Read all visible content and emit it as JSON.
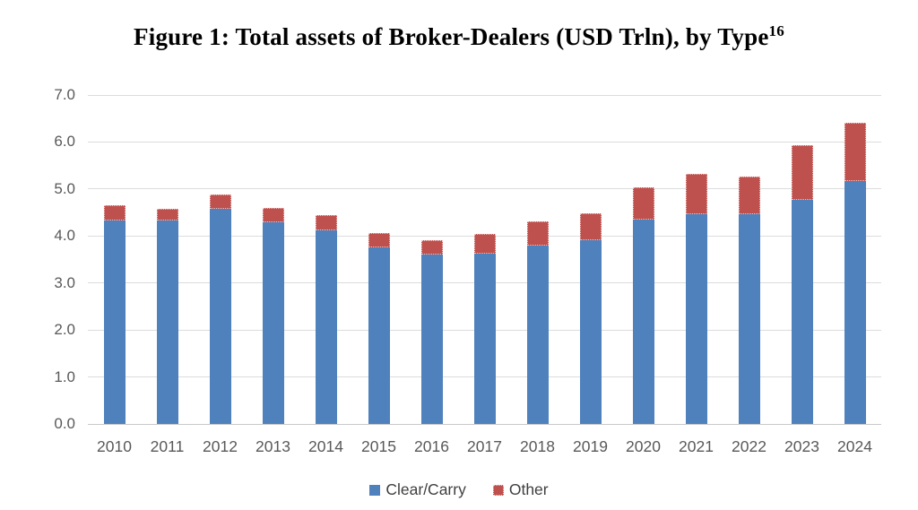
{
  "title": {
    "text": "Figure 1: Total assets of Broker-Dealers (USD Trln), by Type",
    "superscript": "16"
  },
  "chart_data": {
    "type": "bar",
    "stacked": true,
    "title": "Figure 1: Total assets of Broker-Dealers (USD Trln), by Type",
    "title_superscript": "16",
    "categories": [
      "2010",
      "2011",
      "2012",
      "2013",
      "2014",
      "2015",
      "2016",
      "2017",
      "2018",
      "2019",
      "2020",
      "2021",
      "2022",
      "2023",
      "2024"
    ],
    "series": [
      {
        "name": "Clear/Carry",
        "color": "#4F81BD",
        "values": [
          4.33,
          4.33,
          4.57,
          4.3,
          4.12,
          3.75,
          3.6,
          3.62,
          3.8,
          3.91,
          4.34,
          4.46,
          4.47,
          4.77,
          5.17
        ]
      },
      {
        "name": "Other",
        "color": "#BE504D",
        "values": [
          0.33,
          0.25,
          0.32,
          0.3,
          0.33,
          0.31,
          0.32,
          0.42,
          0.52,
          0.58,
          0.7,
          0.86,
          0.79,
          1.17,
          1.24
        ]
      }
    ],
    "xlabel": "",
    "ylabel": "",
    "ylim": [
      0,
      7
    ],
    "ytick_step": 1,
    "ytick_decimals": 1,
    "ytick_labels": [
      "0.0",
      "1.0",
      "2.0",
      "3.0",
      "4.0",
      "5.0",
      "6.0",
      "7.0"
    ],
    "grid": true,
    "legend_position": "bottom"
  },
  "colors": {
    "grid": "#DCDCDC",
    "axis_baseline": "#C9C9C9",
    "axis_text": "#595959",
    "legend_text": "#3F3F3F",
    "background": "#FFFFFF"
  }
}
